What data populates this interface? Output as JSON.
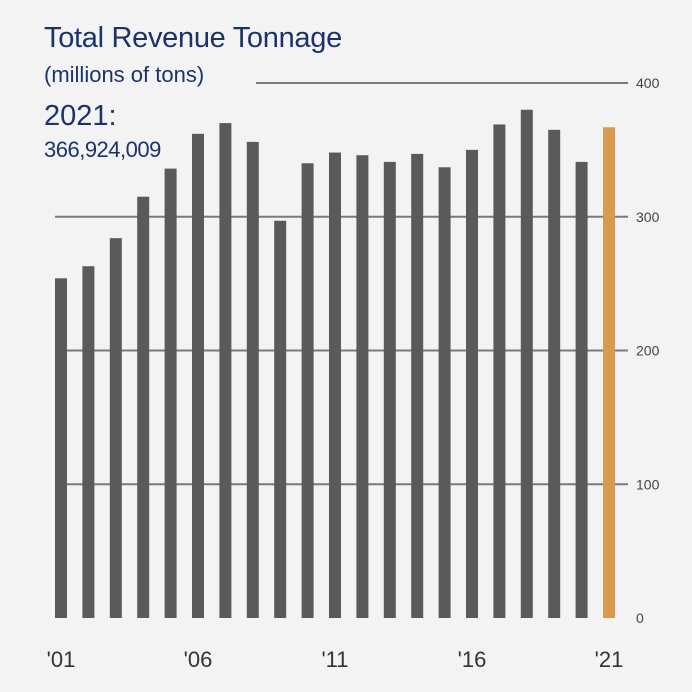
{
  "title": "Total Revenue Tonnage",
  "subtitle": "(millions of tons)",
  "highlight": {
    "year": "2021:",
    "value": "366,924,009"
  },
  "colors": {
    "bar": "#5a5a5a",
    "highlight_bar": "#d99a4e",
    "grid": "#7a7a7a",
    "text": "#1b336b",
    "background": "#f3f3f3"
  },
  "chart_data": {
    "type": "bar",
    "title": "Total Revenue Tonnage",
    "subtitle": "(millions of tons)",
    "categories": [
      "2001",
      "2002",
      "2003",
      "2004",
      "2005",
      "2006",
      "2007",
      "2008",
      "2009",
      "2010",
      "2011",
      "2012",
      "2013",
      "2014",
      "2015",
      "2016",
      "2017",
      "2018",
      "2019",
      "2020",
      "2021"
    ],
    "values": [
      254,
      263,
      284,
      315,
      336,
      362,
      370,
      356,
      297,
      340,
      348,
      346,
      341,
      347,
      337,
      350,
      369,
      380,
      365,
      341,
      366.924009
    ],
    "highlight_category": "2021",
    "x_tick_labels": [
      {
        "category": "2001",
        "label": "'01"
      },
      {
        "category": "2006",
        "label": "'06"
      },
      {
        "category": "2011",
        "label": "'11"
      },
      {
        "category": "2016",
        "label": "'16"
      },
      {
        "category": "2021",
        "label": "'21"
      }
    ],
    "y_ticks": [
      0,
      100,
      200,
      300,
      400
    ],
    "ylim": [
      0,
      400
    ],
    "grid": true,
    "y_axis_position": "right",
    "legend": "none"
  }
}
